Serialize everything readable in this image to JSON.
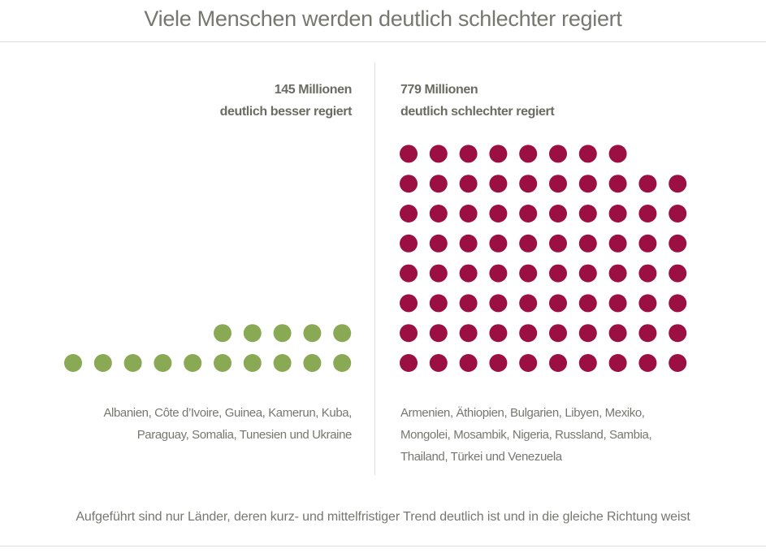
{
  "title": "Viele Menschen werden deutlich schlechter regiert",
  "footer": "Aufgeführt sind nur Länder, deren kurz- und mittelfristiger Trend deutlich ist und in die gleiche Richtung weist",
  "chart_data": {
    "type": "pictogram",
    "title": "Viele Menschen werden deutlich schlechter regiert",
    "series": [
      {
        "name": "deutlich besser regiert",
        "headline": "145 Millionen",
        "subline": "deutlich besser regiert",
        "value_millions": 145,
        "dots": 15,
        "color": "#8aa954",
        "countries_lines": [
          "Albanien, Côte d’Ivoire, Guinea, Kamerun, Kuba,",
          "Paraguay, Somalia, Tunesien und Ukraine"
        ]
      },
      {
        "name": "deutlich schlechter regiert",
        "headline": "779 Millionen",
        "subline": "deutlich schlechter regiert",
        "value_millions": 779,
        "dots": 78,
        "color": "#9c0f42",
        "countries_lines": [
          "Armenien, Äthiopien, Bulgarien, Libyen, Mexiko,",
          "Mongolei, Mosambik, Nigeria, Russland, Sambia,",
          "Thailand, Türkei und Venezuela"
        ]
      }
    ]
  }
}
